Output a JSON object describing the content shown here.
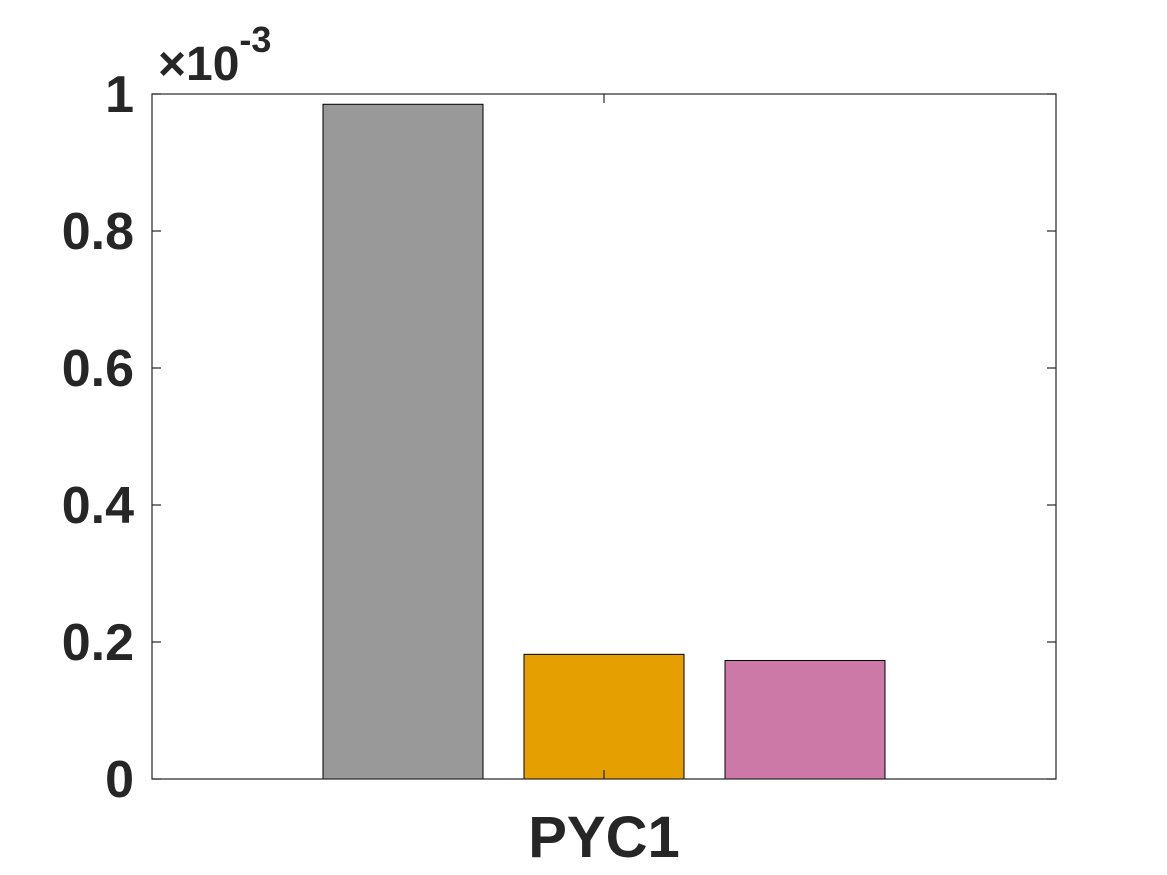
{
  "chart_data": {
    "type": "bar",
    "categories": [
      "PYC1"
    ],
    "series": [
      {
        "values": [
          0.985
        ],
        "color": "#999999"
      },
      {
        "values": [
          0.182
        ],
        "color": "#E69F00"
      },
      {
        "values": [
          0.173
        ],
        "color": "#CC79A7"
      }
    ],
    "scale_multiplier": "×10",
    "scale_exponent": "-3",
    "ylim": [
      0,
      1
    ],
    "yticks": [
      0,
      0.2,
      0.4,
      0.6,
      0.8,
      1
    ],
    "ytick_labels": [
      "0",
      "0.2",
      "0.4",
      "0.6",
      "0.8",
      "1"
    ],
    "title": "",
    "xlabel": "",
    "ylabel": "",
    "grid": false,
    "legend": false
  }
}
